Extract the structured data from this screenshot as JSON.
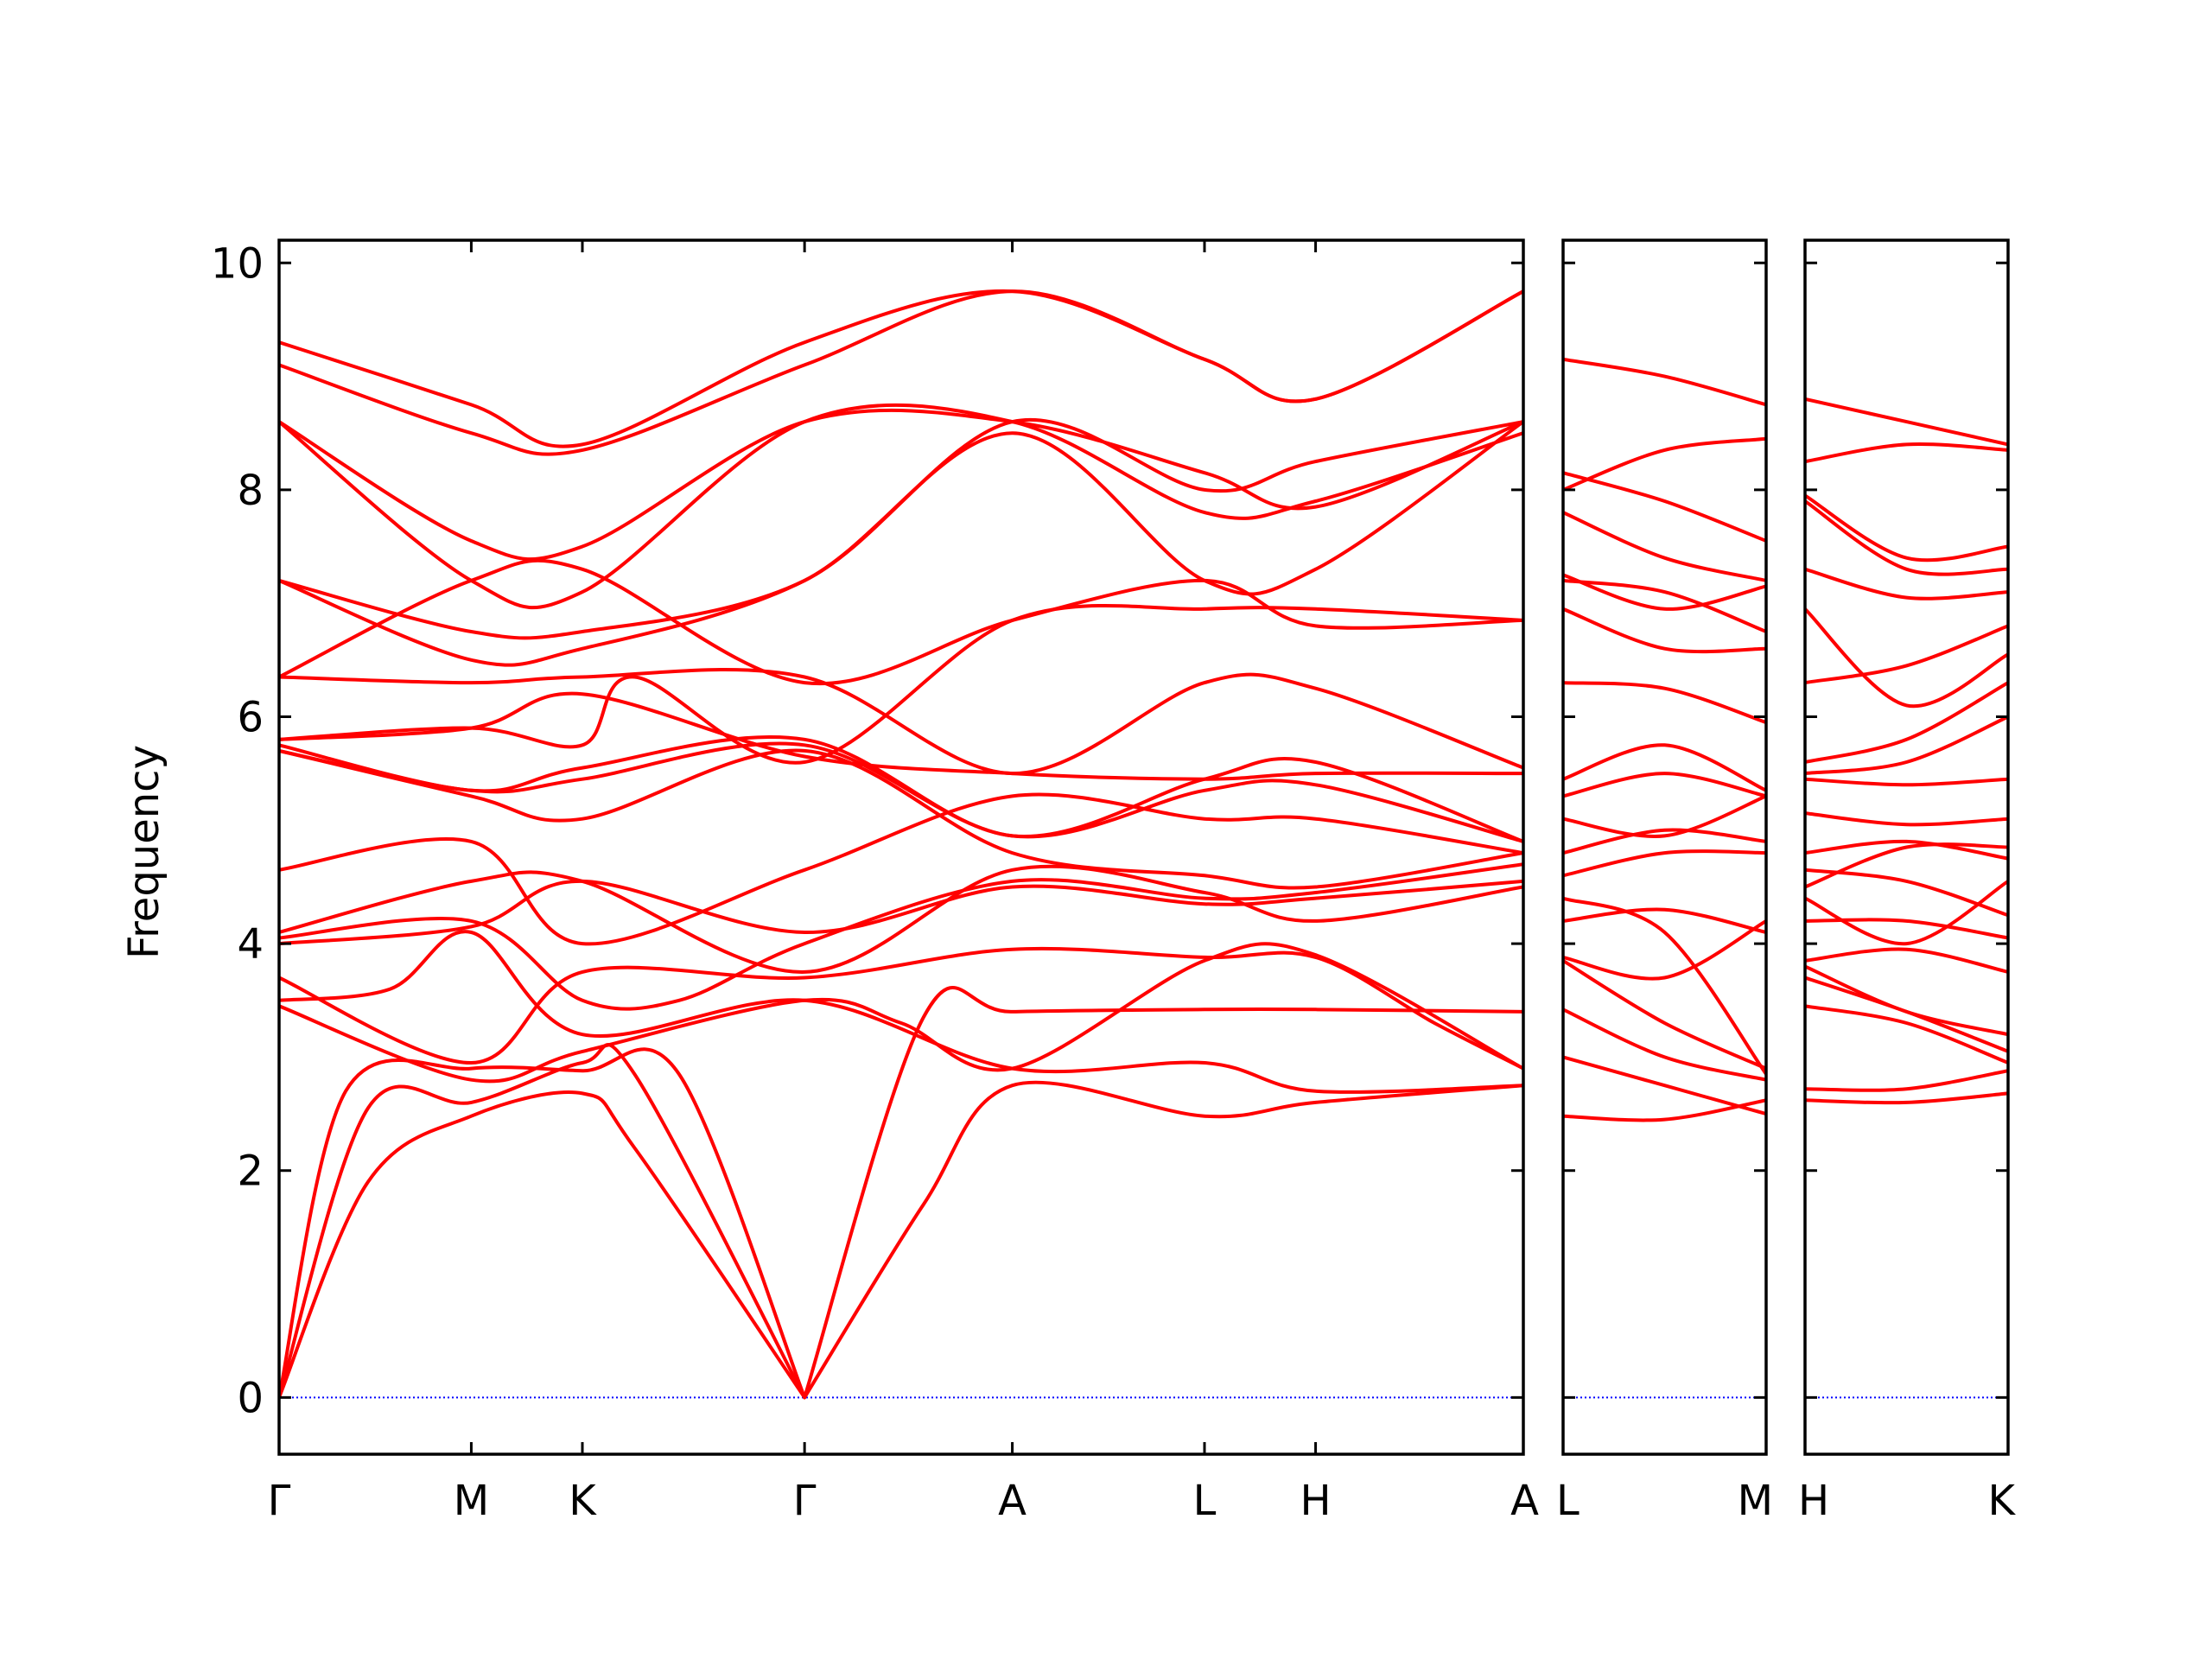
{
  "chart_data": {
    "type": "line",
    "title": "",
    "xlabel": "",
    "ylabel": "Frequency",
    "ylim": [
      -0.5,
      10.2
    ],
    "y_ticks": [
      "0",
      "2",
      "4",
      "6",
      "8",
      "10"
    ],
    "y_tick_values": [
      0,
      2,
      4,
      6,
      8,
      10
    ],
    "grid": false,
    "legend": "none",
    "line_color": "#ff0000",
    "zero_line_color": "#0000ff",
    "panels": [
      {
        "id": "panel-1",
        "path_labels": [
          "Γ",
          "M",
          "K",
          "Γ",
          "A",
          "L",
          "H",
          "A"
        ],
        "path_positions": [
          0,
          0.865,
          1.365,
          2.365,
          3.3,
          4.165,
          4.665,
          5.6
        ],
        "bands": [
          {
            "x": [
              0,
              0.4,
              0.865,
              1.365,
              1.6,
              2.365
            ],
            "y": [
              0,
              2.55,
              2.6,
              2.95,
              2.85,
              0
            ]
          },
          {
            "x": [
              0,
              0.4,
              0.865,
              1.365,
              1.6,
              2.365
            ],
            "y": [
              0,
              1.9,
              2.48,
              2.68,
              2.2,
              0
            ]
          },
          {
            "x": [
              0,
              0.3,
              0.865,
              1.365,
              1.8,
              2.365
            ],
            "y": [
              0,
              2.7,
              2.9,
              2.88,
              2.85,
              0
            ]
          },
          {
            "x": [
              2.365,
              2.9,
              3.3,
              4.165,
              4.665,
              5.6
            ],
            "y": [
              0,
              3.35,
              3.4,
              3.42,
              3.42,
              3.4
            ]
          },
          {
            "x": [
              2.365,
              2.9,
              3.3,
              4.165,
              4.665,
              5.6
            ],
            "y": [
              0,
              1.7,
              2.75,
              2.48,
              2.6,
              2.75
            ]
          },
          {
            "x": [
              0,
              0.865,
              1.365,
              2.365,
              2.8,
              3.3,
              4.165,
              4.665,
              5.6
            ],
            "y": [
              3.45,
              2.8,
              3.05,
              3.5,
              3.3,
              2.9,
              3.85,
              3.9,
              2.9
            ]
          },
          {
            "x": [
              0,
              0.865,
              1.365,
              2.365,
              3.3,
              4.165,
              4.665,
              5.2,
              5.6
            ],
            "y": [
              3.7,
              2.95,
              3.75,
              3.7,
              3.95,
              3.88,
              3.88,
              3.3,
              2.9
            ]
          },
          {
            "x": [
              0,
              0.5,
              0.865,
              1.365,
              2.365,
              3.3,
              4.165,
              4.665,
              5.6
            ],
            "y": [
              3.5,
              3.6,
              4.1,
              3.2,
              3.5,
              2.9,
              2.95,
              2.7,
              2.75
            ]
          },
          {
            "x": [
              0,
              0.865,
              1.365,
              1.8,
              2.365,
              3.3,
              4.165,
              4.665,
              5.6
            ],
            "y": [
              4.05,
              4.2,
              3.5,
              3.5,
              4.0,
              4.55,
              4.4,
              4.45,
              4.7
            ]
          },
          {
            "x": [
              0,
              0.865,
              1.365,
              2.365,
              3.3,
              4.165,
              4.665,
              5.6
            ],
            "y": [
              4.0,
              4.15,
              4.55,
              4.1,
              4.5,
              4.35,
              4.4,
              4.55
            ]
          },
          {
            "x": [
              0,
              0.865,
              1.365,
              2.365,
              3.3,
              4.165,
              4.665,
              5.6
            ],
            "y": [
              4.1,
              4.55,
              4.55,
              3.75,
              4.65,
              4.45,
              4.2,
              4.5
            ]
          },
          {
            "x": [
              0,
              0.865,
              1.365,
              2.365,
              3.3,
              4.165,
              4.665,
              5.6
            ],
            "y": [
              4.65,
              4.9,
              4.0,
              4.65,
              5.3,
              5.1,
              5.1,
              4.8
            ]
          },
          {
            "x": [
              0,
              0.865,
              1.365,
              2.365,
              3.3,
              4.165,
              4.665,
              5.6
            ],
            "y": [
              5.7,
              5.3,
              5.1,
              5.7,
              4.8,
              4.6,
              4.5,
              4.8
            ]
          },
          {
            "x": [
              0,
              0.865,
              1.365,
              2.365,
              3.3,
              4.165,
              4.665,
              5.6
            ],
            "y": [
              5.7,
              5.35,
              5.45,
              5.75,
              4.95,
              5.35,
              5.4,
              4.9
            ]
          },
          {
            "x": [
              0,
              0.865,
              1.365,
              2.365,
              3.3,
              4.165,
              4.665,
              5.6
            ],
            "y": [
              5.75,
              5.35,
              5.55,
              5.8,
              4.95,
              5.45,
              5.6,
              4.9
            ]
          },
          {
            "x": [
              0,
              0.865,
              1.365,
              2.365,
              3.3,
              4.165,
              4.665,
              5.6
            ],
            "y": [
              5.8,
              5.9,
              6.2,
              5.65,
              5.5,
              5.45,
              5.5,
              5.5
            ]
          },
          {
            "x": [
              0,
              0.865,
              1.365,
              1.6,
              2.365,
              3.3,
              4.165,
              4.665,
              5.6
            ],
            "y": [
              5.8,
              5.9,
              5.75,
              6.35,
              5.6,
              6.85,
              6.95,
              6.95,
              6.85
            ]
          },
          {
            "x": [
              0,
              0.865,
              1.365,
              2.365,
              3.3,
              4.165,
              4.665,
              5.6
            ],
            "y": [
              6.35,
              6.3,
              6.35,
              6.35,
              5.5,
              6.3,
              6.25,
              5.55
            ]
          },
          {
            "x": [
              0,
              0.865,
              1.365,
              2.365,
              3.3,
              4.165,
              4.665,
              5.6
            ],
            "y": [
              6.35,
              7.2,
              7.3,
              6.3,
              6.85,
              7.2,
              6.8,
              6.85
            ]
          },
          {
            "x": [
              0,
              0.865,
              1.365,
              2.365,
              3.3,
              4.165,
              4.665,
              5.6
            ],
            "y": [
              7.2,
              6.5,
              6.6,
              7.2,
              8.5,
              7.2,
              7.3,
              8.6
            ]
          },
          {
            "x": [
              0,
              0.865,
              1.365,
              2.365,
              3.3,
              4.165,
              4.665,
              5.6
            ],
            "y": [
              7.2,
              6.75,
              6.75,
              7.2,
              8.6,
              8.0,
              8.25,
              8.6
            ]
          },
          {
            "x": [
              0,
              0.865,
              1.365,
              2.365,
              3.3,
              4.165,
              4.665,
              5.6
            ],
            "y": [
              8.6,
              7.2,
              7.1,
              8.6,
              8.6,
              7.8,
              7.9,
              8.5
            ]
          },
          {
            "x": [
              0,
              0.865,
              1.365,
              2.365,
              3.3,
              4.165,
              4.665,
              5.6
            ],
            "y": [
              8.6,
              7.55,
              7.5,
              8.6,
              8.6,
              8.15,
              7.85,
              8.6
            ]
          },
          {
            "x": [
              0,
              0.865,
              1.365,
              2.365,
              3.3,
              4.165,
              4.665,
              5.6
            ],
            "y": [
              9.1,
              8.5,
              8.35,
              9.1,
              9.75,
              9.15,
              8.8,
              9.75
            ]
          },
          {
            "x": [
              0,
              0.865,
              1.365,
              2.365,
              3.3,
              4.165,
              4.665,
              5.6
            ],
            "y": [
              9.3,
              8.75,
              8.4,
              9.3,
              9.75,
              9.15,
              8.8,
              9.75
            ]
          }
        ]
      },
      {
        "id": "panel-2",
        "path_labels": [
          "L",
          "M"
        ],
        "path_positions": [
          0,
          1
        ],
        "bands": [
          {
            "x": [
              0,
              0.5,
              1
            ],
            "y": [
              2.48,
              2.45,
              2.62
            ]
          },
          {
            "x": [
              0,
              0.5,
              1
            ],
            "y": [
              3.0,
              2.75,
              2.5
            ]
          },
          {
            "x": [
              0,
              0.5,
              1
            ],
            "y": [
              3.42,
              3.0,
              2.8
            ]
          },
          {
            "x": [
              0,
              0.5,
              1
            ],
            "y": [
              3.85,
              3.3,
              2.9
            ]
          },
          {
            "x": [
              0,
              0.5,
              1
            ],
            "y": [
              3.88,
              3.7,
              4.2
            ]
          },
          {
            "x": [
              0,
              0.5,
              1
            ],
            "y": [
              4.2,
              4.3,
              4.1
            ]
          },
          {
            "x": [
              0,
              0.5,
              1
            ],
            "y": [
              4.4,
              4.1,
              2.85
            ]
          },
          {
            "x": [
              0,
              0.5,
              1
            ],
            "y": [
              4.6,
              4.8,
              4.8
            ]
          },
          {
            "x": [
              0,
              0.5,
              1
            ],
            "y": [
              4.8,
              5.0,
              4.9
            ]
          },
          {
            "x": [
              0,
              0.5,
              1
            ],
            "y": [
              5.1,
              4.95,
              5.3
            ]
          },
          {
            "x": [
              0,
              0.5,
              1
            ],
            "y": [
              5.3,
              5.5,
              5.3
            ]
          },
          {
            "x": [
              0,
              0.5,
              1
            ],
            "y": [
              5.45,
              5.75,
              5.35
            ]
          },
          {
            "x": [
              0,
              0.5,
              1
            ],
            "y": [
              6.3,
              6.25,
              5.95
            ]
          },
          {
            "x": [
              0,
              0.5,
              1
            ],
            "y": [
              6.95,
              6.6,
              6.6
            ]
          },
          {
            "x": [
              0,
              0.5,
              1
            ],
            "y": [
              7.2,
              7.1,
              6.75
            ]
          },
          {
            "x": [
              0,
              0.5,
              1
            ],
            "y": [
              7.25,
              6.95,
              7.15
            ]
          },
          {
            "x": [
              0,
              0.5,
              1
            ],
            "y": [
              7.8,
              7.4,
              7.2
            ]
          },
          {
            "x": [
              0,
              0.5,
              1
            ],
            "y": [
              8.15,
              7.9,
              7.55
            ]
          },
          {
            "x": [
              0,
              0.5,
              1
            ],
            "y": [
              8.0,
              8.35,
              8.45
            ]
          },
          {
            "x": [
              0,
              0.5,
              1
            ],
            "y": [
              9.15,
              9.0,
              8.75
            ]
          }
        ]
      },
      {
        "id": "panel-3",
        "path_labels": [
          "H",
          "K"
        ],
        "path_positions": [
          0,
          1
        ],
        "bands": [
          {
            "x": [
              0,
              0.5,
              1
            ],
            "y": [
              2.62,
              2.6,
              2.68
            ]
          },
          {
            "x": [
              0,
              0.5,
              1
            ],
            "y": [
              2.72,
              2.72,
              2.88
            ]
          },
          {
            "x": [
              0,
              0.5,
              1
            ],
            "y": [
              3.45,
              3.3,
              2.95
            ]
          },
          {
            "x": [
              0,
              0.5,
              1
            ],
            "y": [
              3.7,
              3.4,
              3.05
            ]
          },
          {
            "x": [
              0,
              0.5,
              1
            ],
            "y": [
              3.8,
              3.4,
              3.2
            ]
          },
          {
            "x": [
              0,
              0.5,
              1
            ],
            "y": [
              3.85,
              3.95,
              3.75
            ]
          },
          {
            "x": [
              0,
              0.5,
              1
            ],
            "y": [
              4.2,
              4.2,
              4.05
            ]
          },
          {
            "x": [
              0,
              0.5,
              1
            ],
            "y": [
              4.4,
              4.0,
              4.55
            ]
          },
          {
            "x": [
              0,
              0.5,
              1
            ],
            "y": [
              4.5,
              4.85,
              4.85
            ]
          },
          {
            "x": [
              0,
              0.5,
              1
            ],
            "y": [
              4.65,
              4.55,
              4.25
            ]
          },
          {
            "x": [
              0,
              0.5,
              1
            ],
            "y": [
              4.8,
              4.9,
              4.75
            ]
          },
          {
            "x": [
              0,
              0.5,
              1
            ],
            "y": [
              5.15,
              5.05,
              5.1
            ]
          },
          {
            "x": [
              0,
              0.5,
              1
            ],
            "y": [
              5.45,
              5.4,
              5.45
            ]
          },
          {
            "x": [
              0,
              0.5,
              1
            ],
            "y": [
              5.5,
              5.6,
              6.0
            ]
          },
          {
            "x": [
              0,
              0.5,
              1
            ],
            "y": [
              5.6,
              5.8,
              6.3
            ]
          },
          {
            "x": [
              0,
              0.5,
              1
            ],
            "y": [
              6.3,
              6.45,
              6.8
            ]
          },
          {
            "x": [
              0,
              0.5,
              1
            ],
            "y": [
              6.95,
              6.1,
              6.55
            ]
          },
          {
            "x": [
              0,
              0.5,
              1
            ],
            "y": [
              7.3,
              7.05,
              7.1
            ]
          },
          {
            "x": [
              0,
              0.5,
              1
            ],
            "y": [
              7.9,
              7.3,
              7.3
            ]
          },
          {
            "x": [
              0,
              0.5,
              1
            ],
            "y": [
              7.95,
              7.4,
              7.5
            ]
          },
          {
            "x": [
              0,
              0.5,
              1
            ],
            "y": [
              8.25,
              8.4,
              8.35
            ]
          },
          {
            "x": [
              0,
              0.5,
              1
            ],
            "y": [
              8.8,
              8.6,
              8.4
            ]
          }
        ]
      }
    ]
  }
}
